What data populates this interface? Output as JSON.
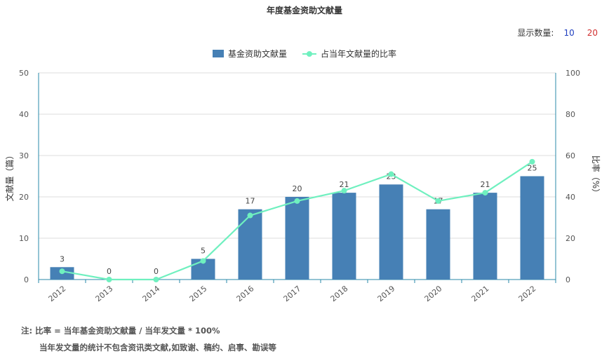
{
  "title": "年度基金资助文献量",
  "count_selector": {
    "label": "显示数量:",
    "options": [
      "10",
      "20"
    ],
    "colors": [
      "#1f3fbf",
      "#d12f2f"
    ]
  },
  "legend": {
    "items": [
      {
        "label": "基金资助文献量",
        "color": "#4680b5",
        "kind": "bar"
      },
      {
        "label": "占当年文献量的比率",
        "color": "#6ff0bf",
        "kind": "line"
      }
    ]
  },
  "chart_data": {
    "type": "bar",
    "title": "年度基金资助文献量",
    "categories": [
      "2012",
      "2013",
      "2014",
      "2015",
      "2016",
      "2017",
      "2018",
      "2019",
      "2020",
      "2021",
      "2022"
    ],
    "series": [
      {
        "name": "基金资助文献量",
        "type": "bar",
        "axis": "left",
        "color": "#4680b5",
        "values": [
          3,
          0,
          0,
          5,
          17,
          20,
          21,
          23,
          17,
          21,
          25
        ]
      },
      {
        "name": "占当年文献量的比率",
        "type": "line",
        "axis": "right",
        "color": "#6ff0bf",
        "values": [
          4,
          0,
          0,
          9,
          31,
          38,
          43,
          51,
          38,
          42,
          57
        ]
      }
    ],
    "ylabel": "文献量（篇）",
    "y2label": "比率（%）",
    "ylim": [
      0,
      50
    ],
    "y2lim": [
      0,
      100
    ],
    "yticks": [
      "0",
      "10",
      "20",
      "30",
      "40",
      "50"
    ],
    "y2ticks": [
      "0",
      "20",
      "40",
      "60",
      "80",
      "100"
    ],
    "grid": true,
    "legend_position": "top-center"
  },
  "notes": {
    "line1": "注:  比率 = 当年基金资助文献量 / 当年发文量 * 100%",
    "line2": "当年发文量的统计不包含资讯类文献,如致谢、稿约、启事、勘误等"
  }
}
